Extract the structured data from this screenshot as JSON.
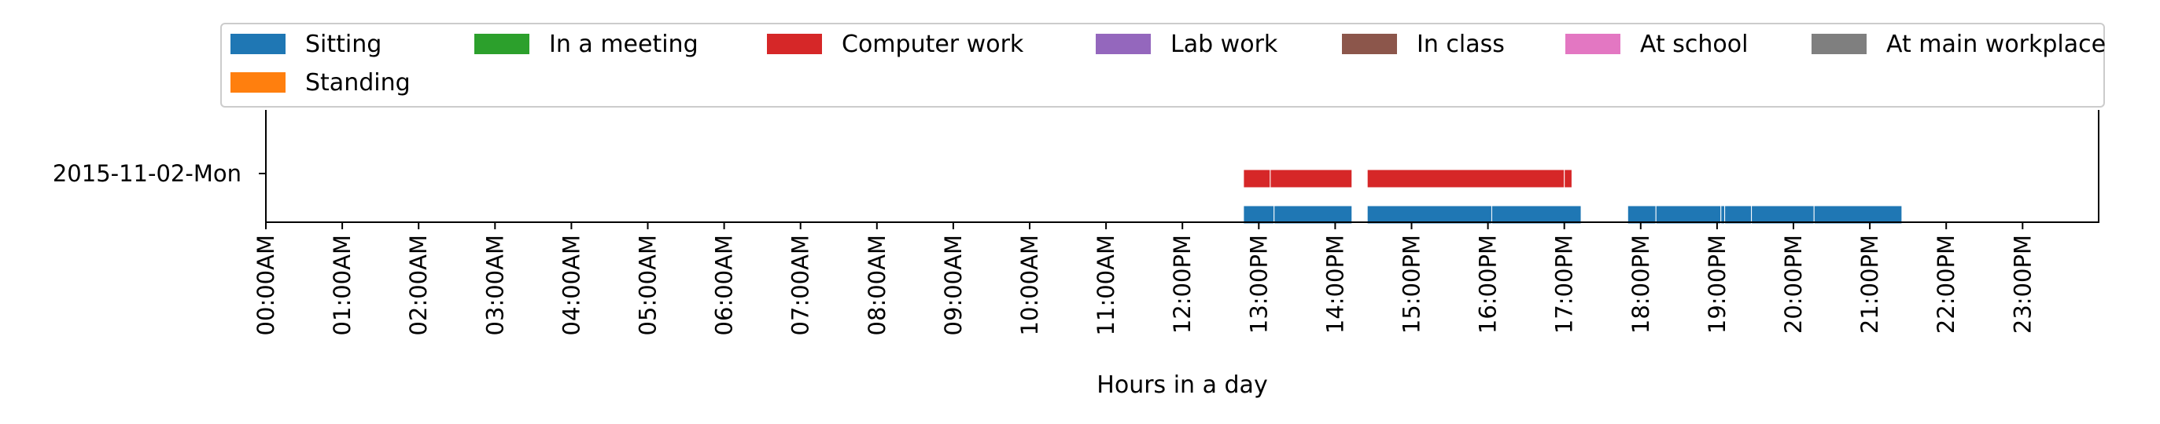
{
  "chart_data": {
    "type": "timeline",
    "title": "",
    "xlabel": "Hours in a day",
    "ylabel": "",
    "xlim": [
      0,
      24
    ],
    "x_tick_labels": [
      "00:00AM",
      "01:00AM",
      "02:00AM",
      "03:00AM",
      "04:00AM",
      "05:00AM",
      "06:00AM",
      "07:00AM",
      "08:00AM",
      "09:00AM",
      "10:00AM",
      "11:00AM",
      "12:00PM",
      "13:00PM",
      "14:00PM",
      "15:00PM",
      "16:00PM",
      "17:00PM",
      "18:00PM",
      "19:00PM",
      "20:00PM",
      "21:00PM",
      "22:00PM",
      "23:00PM"
    ],
    "y_categories": [
      "2015-11-02-Mon"
    ],
    "legend_position": "top",
    "grid": false,
    "series": [
      {
        "name": "Sitting",
        "color": "#1f77b4",
        "intervals": [
          [
            12.8,
            13.2
          ],
          [
            13.2,
            14.22
          ],
          [
            14.42,
            16.05
          ],
          [
            16.05,
            17.22
          ],
          [
            17.83,
            18.2
          ],
          [
            18.2,
            19.05
          ],
          [
            19.05,
            19.1
          ],
          [
            19.1,
            19.45
          ],
          [
            19.45,
            20.27
          ],
          [
            20.27,
            21.42
          ]
        ]
      },
      {
        "name": "Standing",
        "color": "#ff7f0e",
        "intervals": []
      },
      {
        "name": "In a meeting",
        "color": "#2ca02c",
        "intervals": []
      },
      {
        "name": "Computer work",
        "color": "#d62728",
        "intervals": [
          [
            12.8,
            13.15
          ],
          [
            13.15,
            14.22
          ],
          [
            14.42,
            17.0
          ],
          [
            17.0,
            17.1
          ]
        ]
      },
      {
        "name": "Lab work",
        "color": "#9467bd",
        "intervals": []
      },
      {
        "name": "In class",
        "color": "#8c564b",
        "intervals": []
      },
      {
        "name": "At school",
        "color": "#e377c2",
        "intervals": []
      },
      {
        "name": "At main workplace",
        "color": "#7f7f7f",
        "intervals": []
      }
    ]
  }
}
